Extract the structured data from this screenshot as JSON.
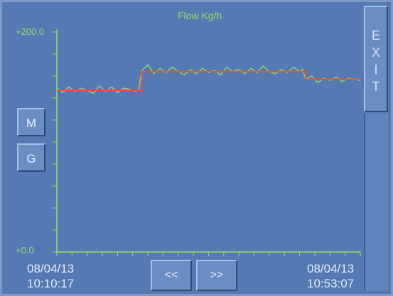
{
  "window": {
    "title": "Flow Kg/h"
  },
  "chart_data": {
    "type": "line",
    "title": "Flow Kg/h",
    "ylim": [
      0.0,
      200.0
    ],
    "y_tick_labels": [
      "+200.0",
      "+0.0"
    ],
    "x_start": {
      "date": "08/04/13",
      "time": "10:10:17"
    },
    "x_end": {
      "date": "08/04/13",
      "time": "10:53:07"
    },
    "grid": false,
    "series": [
      {
        "color": "#e8513a",
        "x": [
          0,
          0.27,
          0.28,
          0.81,
          0.82,
          1.0
        ],
        "values": [
          147,
          147,
          164,
          164,
          157,
          157
        ]
      },
      {
        "color": "#8fe06a",
        "x": [
          0.0,
          0.02,
          0.04,
          0.06,
          0.08,
          0.1,
          0.12,
          0.14,
          0.16,
          0.18,
          0.2,
          0.22,
          0.24,
          0.26,
          0.27,
          0.28,
          0.3,
          0.32,
          0.34,
          0.36,
          0.38,
          0.4,
          0.42,
          0.44,
          0.46,
          0.48,
          0.5,
          0.52,
          0.54,
          0.56,
          0.58,
          0.6,
          0.62,
          0.64,
          0.66,
          0.68,
          0.7,
          0.72,
          0.74,
          0.76,
          0.78,
          0.8,
          0.81,
          0.82,
          0.84,
          0.86,
          0.88,
          0.9,
          0.92,
          0.94,
          0.96,
          0.98,
          1.0
        ],
        "values": [
          149,
          145,
          150,
          146,
          149,
          147,
          144,
          151,
          146,
          150,
          145,
          149,
          148,
          146,
          148,
          165,
          170,
          162,
          167,
          163,
          168,
          164,
          161,
          166,
          162,
          167,
          163,
          165,
          161,
          168,
          164,
          166,
          162,
          167,
          163,
          169,
          164,
          162,
          166,
          163,
          168,
          164,
          166,
          157,
          160,
          154,
          158,
          156,
          159,
          155,
          158,
          157,
          156
        ]
      }
    ]
  },
  "side_buttons": {
    "m_label": "M",
    "g_label": "G"
  },
  "nav": {
    "prev_label": "<<",
    "next_label": ">>"
  },
  "exit": {
    "letters": [
      "E",
      "X",
      "I",
      "T"
    ]
  },
  "colors": {
    "background": "#5579b2",
    "axis": "#8fe06a",
    "setpoint": "#e8513a",
    "measured": "#8fe06a"
  }
}
